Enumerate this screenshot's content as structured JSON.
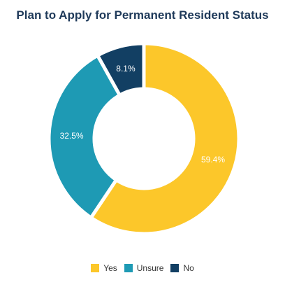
{
  "chart_data": {
    "type": "pie",
    "title": "Plan to Apply for Permanent Resident Status",
    "donut": true,
    "slices": [
      {
        "label": "Yes",
        "value": 59.4,
        "value_label": "59.4%",
        "color": "#fcc72a"
      },
      {
        "label": "Unsure",
        "value": 32.5,
        "value_label": "32.5%",
        "color": "#1e9ab4"
      },
      {
        "label": "No",
        "value": 8.1,
        "value_label": "8.1%",
        "color": "#123f63"
      }
    ],
    "legend_position": "bottom"
  }
}
